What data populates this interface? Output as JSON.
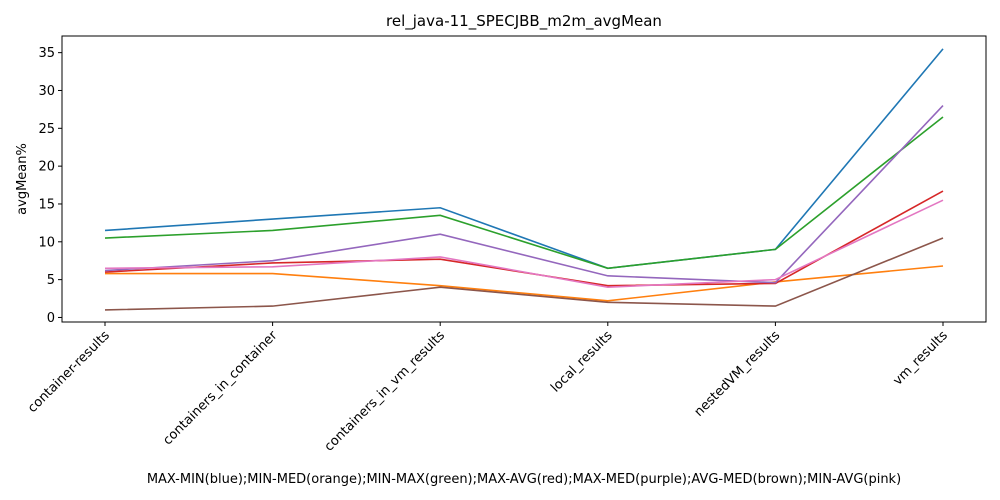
{
  "chart_data": {
    "type": "line",
    "title": "rel_java-11_SPECJBB_m2m_avgMean",
    "ylabel": "avgMean%",
    "xlabel": "MAX-MIN(blue);MIN-MED(orange);MIN-MAX(green);MAX-AVG(red);MAX-MED(purple);AVG-MED(brown);MIN-AVG(pink)",
    "categories": [
      "container-results",
      "containers_in_container",
      "containers_in_vm_results",
      "local_results",
      "nestedVM_results",
      "vm_results"
    ],
    "ylim": [
      -0.6,
      37.2
    ],
    "yticks": [
      "0",
      "5",
      "10",
      "15",
      "20",
      "25",
      "30",
      "35"
    ],
    "grid": false,
    "series": [
      {
        "color": "#1f77b4",
        "values": [
          11.5,
          13.0,
          14.5,
          6.5,
          9.0,
          35.5
        ]
      },
      {
        "color": "#ff7f0e",
        "values": [
          5.8,
          5.8,
          4.2,
          2.2,
          4.7,
          6.8
        ]
      },
      {
        "color": "#2ca02c",
        "values": [
          10.5,
          11.5,
          13.5,
          6.5,
          9.0,
          26.5
        ]
      },
      {
        "color": "#d62728",
        "values": [
          6.0,
          7.2,
          7.7,
          4.2,
          4.5,
          16.7
        ]
      },
      {
        "color": "#9467bd",
        "values": [
          6.2,
          7.5,
          11.0,
          5.5,
          4.6,
          28.0
        ]
      },
      {
        "color": "#8c564b",
        "values": [
          1.0,
          1.5,
          4.0,
          2.0,
          1.5,
          10.5
        ]
      },
      {
        "color": "#e377c2",
        "values": [
          6.5,
          6.7,
          8.0,
          4.0,
          5.0,
          15.5
        ]
      }
    ]
  }
}
